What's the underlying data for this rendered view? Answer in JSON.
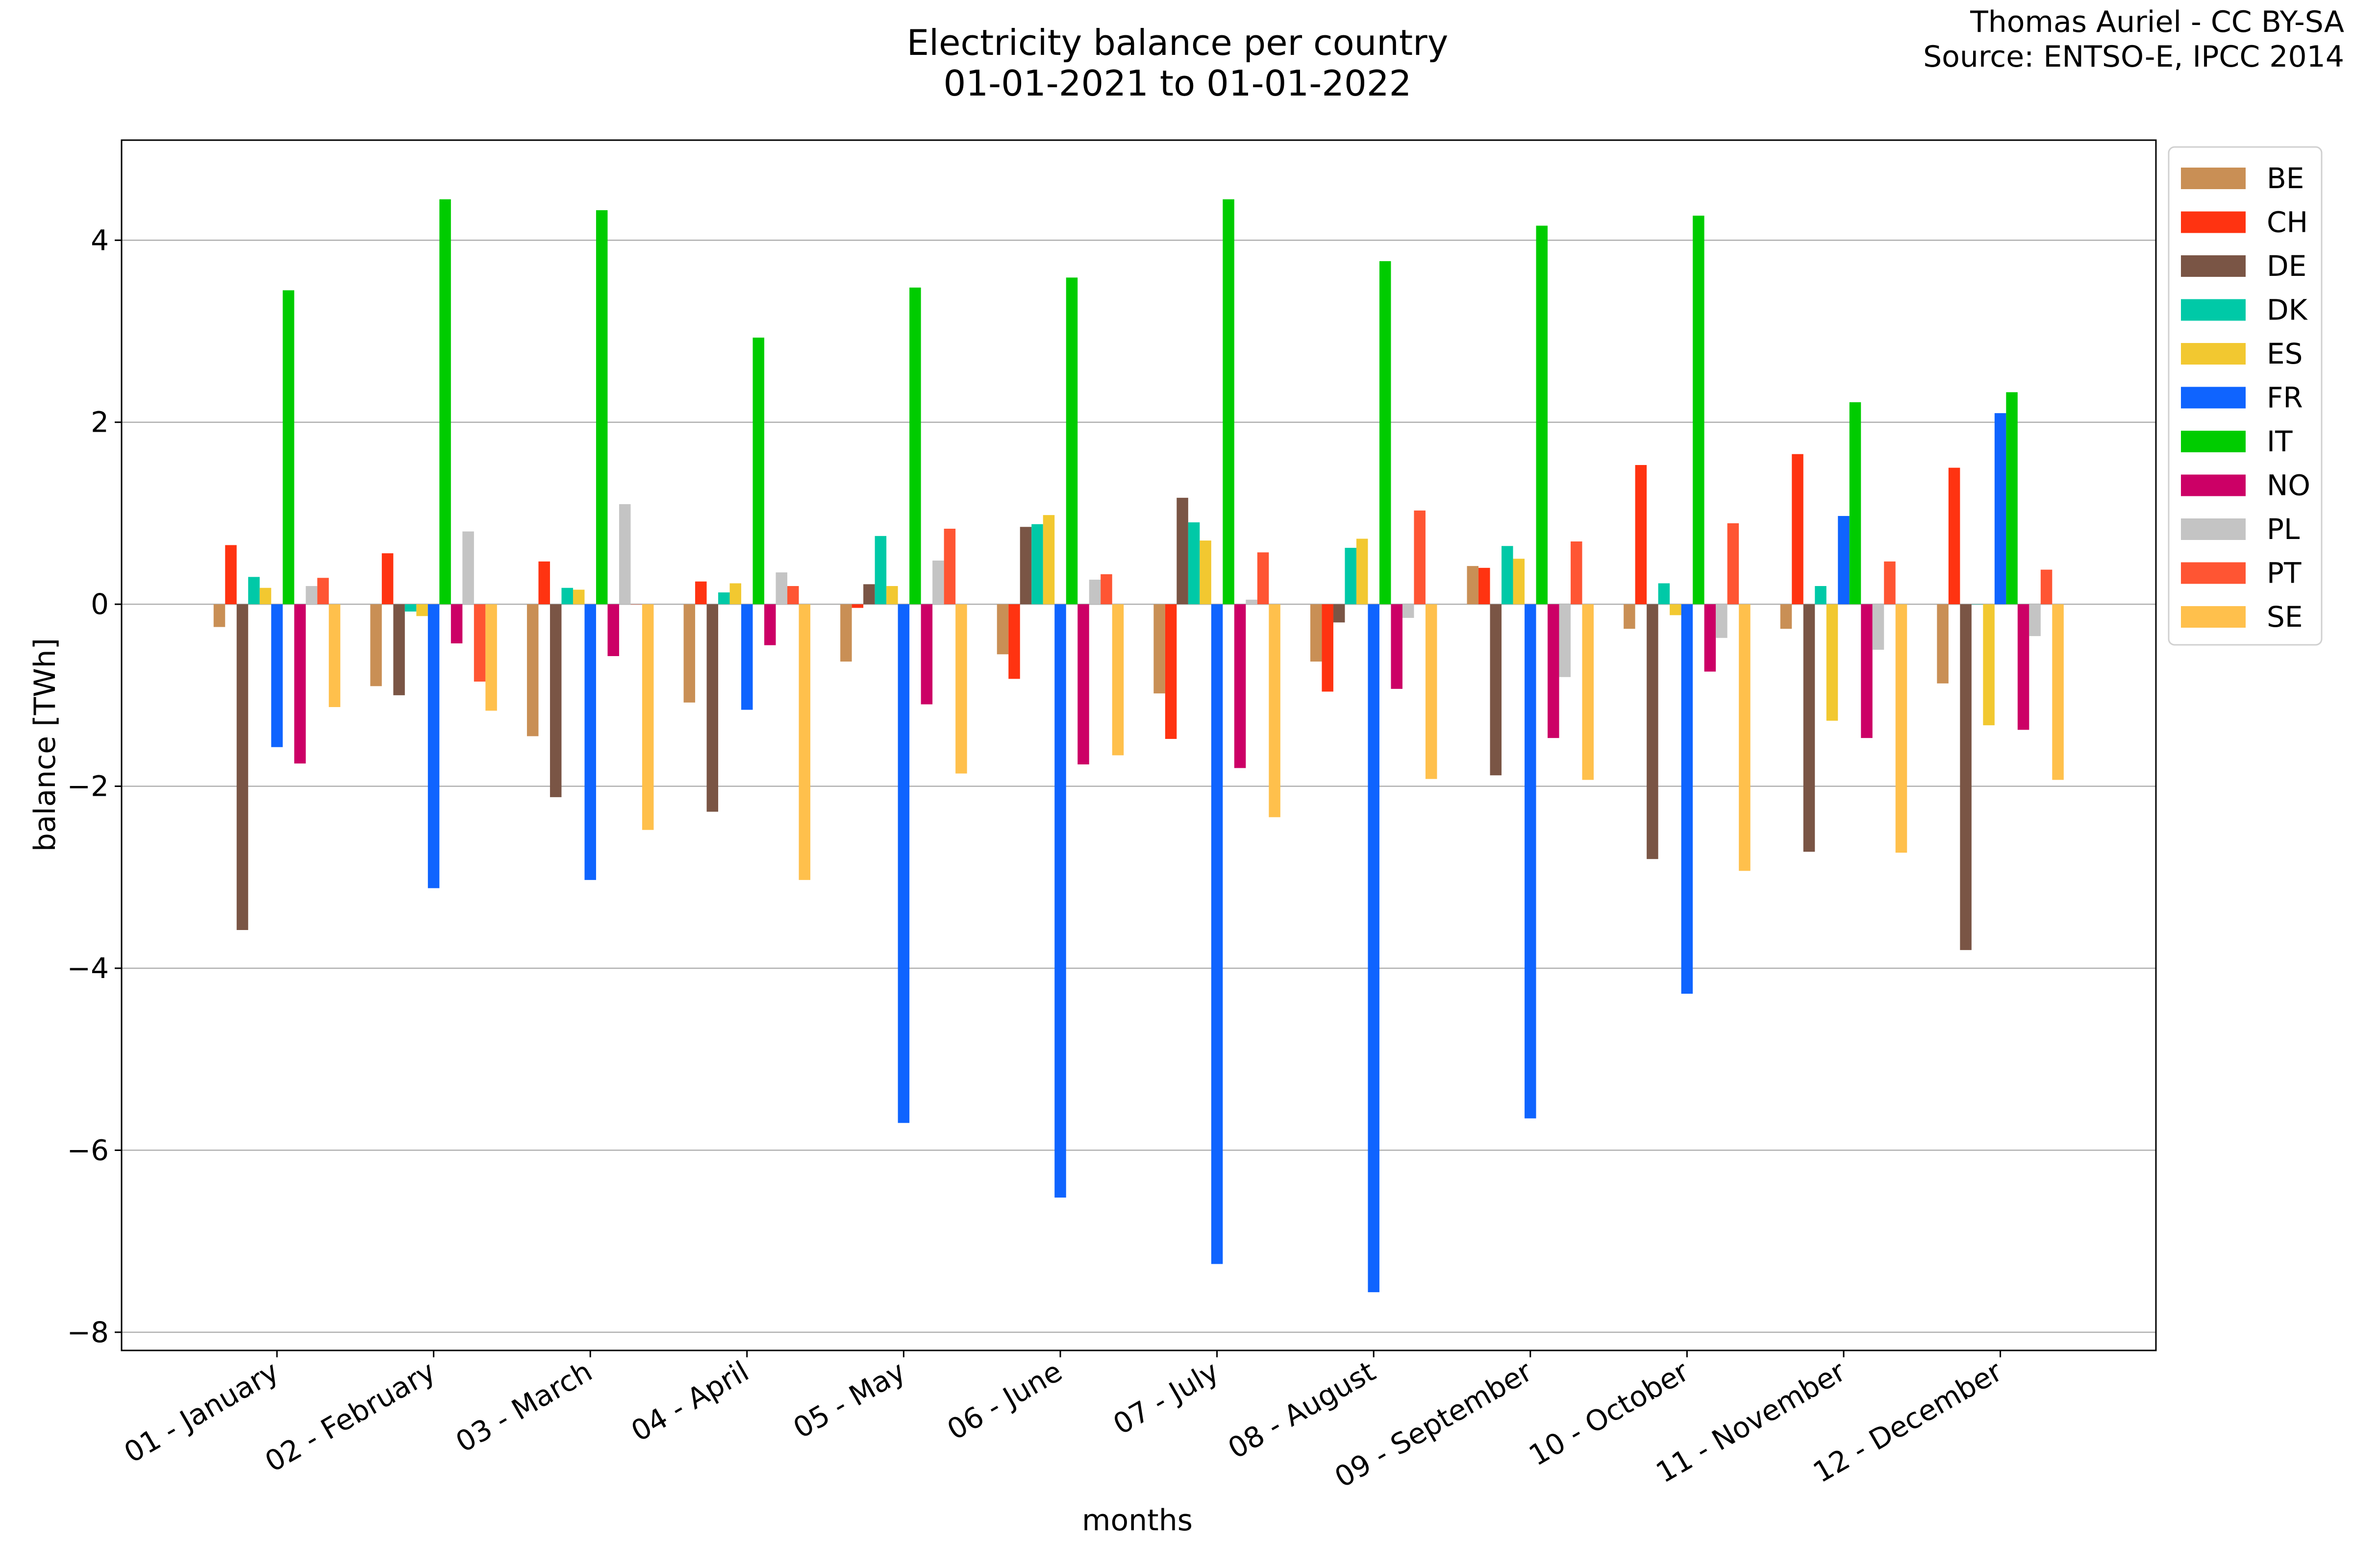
{
  "header": {
    "title_line1": "Electricity balance per country",
    "title_line2": "01-01-2021 to 01-01-2022",
    "credit_line1": "Thomas Auriel - CC BY-SA",
    "credit_line2": "Source: ENTSO-E, IPCC 2014"
  },
  "chart_data": {
    "type": "bar",
    "xlabel": "months",
    "ylabel": "balance [TWh]",
    "ylim": [
      -8.2,
      5.1
    ],
    "yticks": [
      -8,
      -6,
      -4,
      -2,
      0,
      2,
      4
    ],
    "ytick_labels": [
      "−8",
      "−6",
      "−4",
      "−2",
      "0",
      "2",
      "4"
    ],
    "grid": "horizontal",
    "legend_position": "upper-right-outside",
    "categories": [
      "01 - January",
      "02 - February",
      "03 - March",
      "04 - April",
      "05 - May",
      "06 - June",
      "07 - July",
      "08 - August",
      "09 - September",
      "10 - October",
      "11 - November",
      "12 - December"
    ],
    "series": [
      {
        "name": "BE",
        "color": "#c98f55",
        "values": [
          -0.25,
          -0.9,
          -1.45,
          -1.08,
          -0.63,
          -0.55,
          -0.98,
          -0.63,
          0.42,
          -0.27,
          -0.27,
          -0.87
        ]
      },
      {
        "name": "CH",
        "color": "#ff3311",
        "values": [
          0.65,
          0.56,
          0.47,
          0.25,
          -0.04,
          -0.82,
          -1.48,
          -0.96,
          0.4,
          1.53,
          1.65,
          1.5
        ]
      },
      {
        "name": "DE",
        "color": "#7a5545",
        "values": [
          -3.58,
          -1.0,
          -2.12,
          -2.28,
          0.22,
          0.85,
          1.17,
          -0.2,
          -1.88,
          -2.8,
          -2.72,
          -3.8
        ]
      },
      {
        "name": "DK",
        "color": "#00c9a7",
        "values": [
          0.3,
          -0.08,
          0.18,
          0.13,
          0.75,
          0.88,
          0.9,
          0.62,
          0.64,
          0.23,
          0.2,
          0.0
        ]
      },
      {
        "name": "ES",
        "color": "#f2c830",
        "values": [
          0.18,
          -0.13,
          0.16,
          0.23,
          0.2,
          0.98,
          0.7,
          0.72,
          0.5,
          -0.12,
          -1.28,
          -1.33
        ]
      },
      {
        "name": "FR",
        "color": "#0f64ff",
        "values": [
          -1.57,
          -3.12,
          -3.03,
          -1.16,
          -5.7,
          -6.52,
          -7.25,
          -7.56,
          -5.65,
          -4.28,
          0.97,
          2.1
        ]
      },
      {
        "name": "IT",
        "color": "#00cc00",
        "values": [
          3.45,
          4.45,
          4.33,
          2.93,
          3.48,
          3.59,
          4.45,
          3.77,
          4.16,
          4.27,
          2.22,
          2.33
        ]
      },
      {
        "name": "NO",
        "color": "#cc0066",
        "values": [
          -1.75,
          -0.43,
          -0.57,
          -0.45,
          -1.1,
          -1.76,
          -1.8,
          -0.93,
          -1.47,
          -0.74,
          -1.47,
          -1.38
        ]
      },
      {
        "name": "PL",
        "color": "#c4c4c4",
        "values": [
          0.2,
          0.8,
          1.1,
          0.35,
          0.48,
          0.27,
          0.05,
          -0.15,
          -0.8,
          -0.37,
          -0.5,
          -0.35
        ]
      },
      {
        "name": "PT",
        "color": "#ff5533",
        "values": [
          0.29,
          -0.85,
          0.0,
          0.2,
          0.83,
          0.33,
          0.57,
          1.03,
          0.69,
          0.89,
          0.47,
          0.38
        ]
      },
      {
        "name": "SE",
        "color": "#ffc04c",
        "values": [
          -1.13,
          -1.17,
          -2.48,
          -3.03,
          -1.86,
          -1.66,
          -2.34,
          -1.92,
          -1.93,
          -2.93,
          -2.73,
          -1.93
        ]
      }
    ]
  }
}
